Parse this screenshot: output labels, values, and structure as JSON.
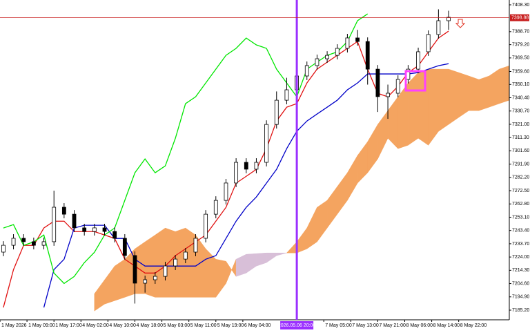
{
  "chart_data": {
    "type": "candlestick",
    "xlim": [
      0,
      151
    ],
    "ylim": [
      7178.13,
      7411.83
    ],
    "xticks": [
      {
        "value": 0,
        "label": "1 May 2026"
      },
      {
        "value": 8,
        "label": "1 May 09:00"
      },
      {
        "value": 16,
        "label": "1 May 17:00"
      },
      {
        "value": 24,
        "label": "4 May 02:00"
      },
      {
        "value": 32,
        "label": "4 May 10:00"
      },
      {
        "value": 40,
        "label": "4 May 18:00"
      },
      {
        "value": 48,
        "label": "5 May 03:00"
      },
      {
        "value": 56,
        "label": "5 May 11:00"
      },
      {
        "value": 64,
        "label": "5 May 19:00"
      },
      {
        "value": 72,
        "label": "6 May 04:00"
      },
      {
        "value": 96,
        "label": "7 May 05:00"
      },
      {
        "value": 104,
        "label": "7 May 13:00"
      },
      {
        "value": 112,
        "label": "7 May 21:00"
      },
      {
        "value": 120,
        "label": "8 May 06:00"
      },
      {
        "value": 128,
        "label": "8 May 14:00"
      },
      {
        "value": 136,
        "label": "8 May 22:00"
      }
    ],
    "cursor": {
      "value": 88,
      "label": "2026.05.06 20:00",
      "color": "#9b30ff"
    },
    "yticks": [
      {
        "value": 7408.3,
        "label": "7408.30"
      },
      {
        "value": 7388.7,
        "label": "7388.70"
      },
      {
        "value": 7379.2,
        "label": "7379.20"
      },
      {
        "value": 7369.5,
        "label": "7369.50"
      },
      {
        "value": 7359.6,
        "label": "7359.60"
      },
      {
        "value": 7350.1,
        "label": "7350.10"
      },
      {
        "value": 7340.4,
        "label": "7340.40"
      },
      {
        "value": 7330.7,
        "label": "7330.70"
      },
      {
        "value": 7321,
        "label": "7321.00"
      },
      {
        "value": 7311.3,
        "label": "7311.30"
      },
      {
        "value": 7301.6,
        "label": "7301.60"
      },
      {
        "value": 7291.9,
        "label": "7291.90"
      },
      {
        "value": 7282.2,
        "label": "7282.20"
      },
      {
        "value": 7272.5,
        "label": "7272.50"
      },
      {
        "value": 7262.8,
        "label": "7262.80"
      },
      {
        "value": 7253.1,
        "label": "7253.10"
      },
      {
        "value": 7243.4,
        "label": "7243.40"
      },
      {
        "value": 7233.7,
        "label": "7233.70"
      },
      {
        "value": 7224,
        "label": "7224.00"
      },
      {
        "value": 7214.3,
        "label": "7214.30"
      },
      {
        "value": 7204.6,
        "label": "7204.60"
      },
      {
        "value": 7194.9,
        "label": "7194.90"
      },
      {
        "value": 7185.2,
        "label": "7185.20"
      }
    ],
    "current_price": 7398.88,
    "current_price_color": "#c81e1e",
    "x": [
      1,
      4,
      7,
      10,
      13,
      16,
      19,
      22,
      25,
      28,
      31,
      34,
      37,
      40,
      43,
      46,
      49,
      52,
      55,
      58,
      61,
      64,
      67,
      70,
      73,
      76,
      79,
      82,
      85,
      88,
      91,
      94,
      97,
      100,
      103,
      106,
      109,
      112,
      115,
      118,
      121,
      124,
      127,
      130,
      133
    ],
    "open": [
      7227.6,
      7232.6,
      7237.7,
      7235.2,
      7232.6,
      7235.2,
      7260.4,
      7255.3,
      7245.3,
      7242.7,
      7245.3,
      7242.7,
      7237.7,
      7225.1,
      7204.9,
      7207.4,
      7209.9,
      7217.5,
      7222.5,
      7227.6,
      7237.7,
      7255.3,
      7265.4,
      7278.1,
      7293.2,
      7288.2,
      7293.2,
      7320.9,
      7338.6,
      7346.2,
      7356.3,
      7363.9,
      7368.9,
      7371.4,
      7376.5,
      7384.1,
      7381.5,
      7361.3,
      7341.2,
      7343.7,
      7353.8,
      7361.3,
      7374.0,
      7386.6,
      7396.7
    ],
    "high": [
      7235.6,
      7240.7,
      7240.7,
      7238.2,
      7238.2,
      7272.5,
      7263.4,
      7258.3,
      7248.3,
      7248.3,
      7248.3,
      7245.7,
      7240.7,
      7228.1,
      7210.4,
      7212.9,
      7220.5,
      7225.5,
      7230.6,
      7240.7,
      7258.3,
      7268.4,
      7281.1,
      7296.2,
      7296.2,
      7296.2,
      7323.9,
      7345.0,
      7355.0,
      7359.3,
      7366.9,
      7371.9,
      7374.4,
      7379.5,
      7387.1,
      7390.0,
      7384.5,
      7364.3,
      7350.0,
      7356.8,
      7364.3,
      7377.0,
      7389.6,
      7405.0,
      7404.0
    ],
    "low": [
      7224.6,
      7229.6,
      7232.2,
      7229.6,
      7229.6,
      7232.2,
      7252.3,
      7242.3,
      7239.7,
      7239.7,
      7239.7,
      7234.7,
      7222.1,
      7190.0,
      7198.0,
      7204.4,
      7206.9,
      7214.5,
      7219.5,
      7224.6,
      7234.7,
      7252.3,
      7262.4,
      7275.1,
      7285.2,
      7285.2,
      7290.2,
      7317.9,
      7335.6,
      7343.2,
      7353.3,
      7360.9,
      7365.9,
      7368.4,
      7373.5,
      7378.5,
      7350.0,
      7330.0,
      7325.0,
      7340.7,
      7350.8,
      7358.3,
      7371.0,
      7383.6,
      7390.0
    ],
    "close": [
      7232.6,
      7237.7,
      7235.2,
      7232.6,
      7235.2,
      7260.4,
      7255.3,
      7245.3,
      7242.7,
      7245.3,
      7242.7,
      7237.7,
      7225.1,
      7204.9,
      7207.4,
      7209.9,
      7217.5,
      7222.5,
      7227.6,
      7237.7,
      7255.3,
      7265.4,
      7278.1,
      7293.2,
      7288.2,
      7293.2,
      7320.9,
      7338.6,
      7346.2,
      7356.3,
      7363.9,
      7368.9,
      7371.4,
      7376.5,
      7384.1,
      7381.5,
      7361.3,
      7341.2,
      7343.7,
      7353.8,
      7361.3,
      7374.0,
      7386.6,
      7396.7,
      7399.2
    ],
    "lines": [
      {
        "color": "#e01010",
        "values": [
          7187.1,
          7214.8,
          7232.5,
          7232.5,
          7245.2,
          7250.2,
          7250.2,
          7242.6,
          7242.6,
          7242.6,
          7240.1,
          7237.6,
          7222.4,
          7217.4,
          7212.3,
          7212.3,
          7217.4,
          7225.0,
          7230.0,
          7235.1,
          7240.1,
          7250.2,
          7260.3,
          7278.0,
          7283.0,
          7288.1,
          7303.2,
          7323.4,
          7333.5,
          7336.1,
          7351.2,
          7361.3,
          7366.4,
          7371.4,
          7376.5,
          7381.5,
          7361.3,
          7343.6,
          7341.1,
          7348.7,
          7358.8,
          7363.8,
          7373.9,
          7384.0,
          7389.1
        ]
      },
      {
        "color": "#0000c8",
        "values": [
          null,
          null,
          null,
          null,
          7187.1,
          7214.8,
          7222.4,
          7245.2,
          7247.2,
          7247.2,
          7247.2,
          7237.6,
          7237.6,
          7222.4,
          7217.4,
          7217.4,
          7217.4,
          7217.4,
          7217.4,
          7217.4,
          7222.4,
          7225.0,
          7237.6,
          7250.2,
          7260.3,
          7267.9,
          7278.0,
          7288.1,
          7303.2,
          7315.9,
          7323.4,
          7328.5,
          7333.5,
          7338.6,
          7346.2,
          7351.2,
          7357.8,
          7357.8,
          7357.8,
          7357.8,
          7357.8,
          7358.8,
          7361.3,
          7363.8,
          7365.3
        ]
      },
      {
        "color": "#00e600",
        "values": [
          7245.2,
          7247.7,
          7232.5,
          7235.1,
          7240.1,
          7212.3,
          7204.7,
          7209.8,
          7219.9,
          7227.5,
          7240.1,
          7245.2,
          7265.4,
          7285.6,
          7295.7,
          7285.6,
          7290.6,
          7310.8,
          7336.1,
          7341.1,
          7351.2,
          7361.3,
          7371.4,
          7376.5,
          7384.0,
          7379.0,
          7376.5,
          7361.3,
          7351.2,
          7341.1,
          7361.3,
          7366.4,
          7371.4,
          7373.9,
          7381.5,
          7396.7,
          7401.7,
          null,
          null,
          null,
          null,
          null,
          null,
          null,
          null
        ]
      }
    ],
    "cloud": {
      "bull_color": "#f4a460",
      "bear_color": "#d8bfd8",
      "x": [
        28,
        31,
        34,
        37,
        40,
        43,
        46,
        49,
        52,
        55,
        58,
        61,
        64,
        67,
        70,
        73,
        76,
        79,
        82,
        85,
        88,
        91,
        94,
        97,
        100,
        103,
        106,
        109,
        112,
        115,
        118,
        121,
        124,
        127,
        130,
        133,
        136,
        139,
        142,
        145,
        148,
        151
      ],
      "span_a": [
        7197.2,
        7207.3,
        7217.4,
        7222.4,
        7230.0,
        7235.1,
        7240.1,
        7245.2,
        7242.6,
        7245.2,
        7240.1,
        7230.0,
        7222.4,
        7220.9,
        7209.8,
        7212.3,
        7217.4,
        7219.9,
        7225.0,
        7227.0,
        7235.1,
        7245.2,
        7260.3,
        7265.4,
        7275.5,
        7285.6,
        7298.2,
        7308.3,
        7320.9,
        7331.0,
        7341.1,
        7351.2,
        7358.8,
        7361.3,
        7361.3,
        7361.3,
        7358.8,
        7356.3,
        7353.7,
        7356.3,
        7361.3,
        7363.8
      ],
      "span_b": [
        7184.6,
        7189.6,
        7192.1,
        7194.6,
        7197.2,
        7197.2,
        7194.6,
        7194.6,
        7194.6,
        7194.6,
        7194.6,
        7194.6,
        7194.6,
        7204.7,
        7222.4,
        7226.0,
        7226.5,
        7227.0,
        7227.0,
        7227.0,
        7227.0,
        7230.0,
        7235.1,
        7245.2,
        7255.3,
        7265.4,
        7278.0,
        7285.6,
        7295.7,
        7310.8,
        7303.2,
        7305.7,
        7310.8,
        7305.7,
        7315.8,
        7320.9,
        7326.0,
        7331.0,
        7331.0,
        7333.5,
        7336.1,
        7338.6
      ]
    }
  }
}
